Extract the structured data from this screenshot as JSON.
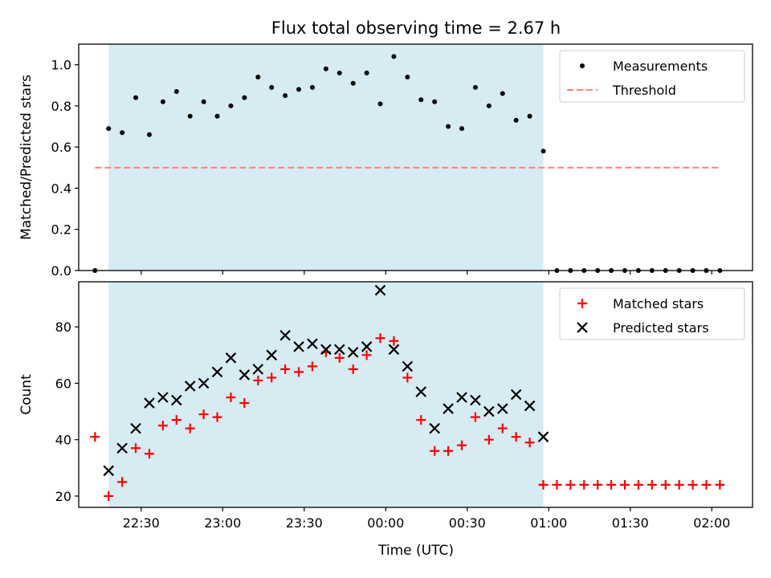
{
  "chart_data": {
    "title": "Flux total observing time = 2.67 h",
    "xlabel": "Time (UTC)",
    "x_unit": "time of day (UTC), consecutive nights from 22:00 to 02:00",
    "xlim": [
      "22:07",
      "02:15"
    ],
    "x_ticks": [
      "22:30",
      "23:00",
      "23:30",
      "00:00",
      "00:30",
      "01:00",
      "01:30",
      "02:00"
    ],
    "shaded_span": {
      "start": "22:18",
      "end": "00:58",
      "color": "#add8e6"
    },
    "panels": [
      {
        "type": "scatter",
        "ylabel": "Matched/Predicted stars",
        "ylim": [
          0,
          1.1
        ],
        "y_ticks": [
          "0.0",
          "0.2",
          "0.4",
          "0.6",
          "0.8",
          "1.0"
        ],
        "legend_position": "top-right",
        "series": [
          {
            "name": "Measurements",
            "marker": "dot",
            "color": "#000000",
            "x": [
              "22:13",
              "22:18",
              "22:23",
              "22:28",
              "22:33",
              "22:38",
              "22:43",
              "22:48",
              "22:53",
              "22:58",
              "23:03",
              "23:08",
              "23:13",
              "23:18",
              "23:23",
              "23:28",
              "23:33",
              "23:38",
              "23:43",
              "23:48",
              "23:53",
              "23:58",
              "00:03",
              "00:08",
              "00:13",
              "00:18",
              "00:23",
              "00:28",
              "00:33",
              "00:38",
              "00:43",
              "00:48",
              "00:53",
              "00:58",
              "01:03",
              "01:08",
              "01:13",
              "01:18",
              "01:23",
              "01:28",
              "01:33",
              "01:38",
              "01:43",
              "01:48",
              "01:53",
              "01:58",
              "02:03"
            ],
            "y": [
              0.0,
              0.69,
              0.67,
              0.84,
              0.66,
              0.82,
              0.87,
              0.75,
              0.82,
              0.75,
              0.8,
              0.84,
              0.94,
              0.89,
              0.85,
              0.88,
              0.89,
              0.98,
              0.96,
              0.91,
              0.96,
              0.81,
              1.04,
              0.94,
              0.83,
              0.82,
              0.7,
              0.69,
              0.89,
              0.8,
              0.86,
              0.73,
              0.75,
              0.58,
              0.0,
              0.0,
              0.0,
              0.0,
              0.0,
              0.0,
              0.0,
              0.0,
              0.0,
              0.0,
              0.0,
              0.0,
              0.0
            ]
          },
          {
            "name": "Threshold",
            "marker": "dashed-line",
            "color": "#ff8080",
            "x": [
              "22:13",
              "02:03"
            ],
            "y": [
              0.5,
              0.5
            ]
          }
        ]
      },
      {
        "type": "scatter",
        "ylabel": "Count",
        "ylim": [
          16,
          96
        ],
        "y_ticks": [
          "20",
          "40",
          "60",
          "80"
        ],
        "legend_position": "top-right",
        "series": [
          {
            "name": "Matched stars",
            "marker": "plus",
            "color": "#ff0000",
            "x": [
              "22:13",
              "22:18",
              "22:23",
              "22:28",
              "22:33",
              "22:38",
              "22:43",
              "22:48",
              "22:53",
              "22:58",
              "23:03",
              "23:08",
              "23:13",
              "23:18",
              "23:23",
              "23:28",
              "23:33",
              "23:38",
              "23:43",
              "23:48",
              "23:53",
              "23:58",
              "00:03",
              "00:08",
              "00:13",
              "00:18",
              "00:23",
              "00:28",
              "00:33",
              "00:38",
              "00:43",
              "00:48",
              "00:53",
              "00:58",
              "01:03",
              "01:08",
              "01:13",
              "01:18",
              "01:23",
              "01:28",
              "01:33",
              "01:38",
              "01:43",
              "01:48",
              "01:53",
              "01:58",
              "02:03"
            ],
            "y": [
              41,
              20,
              25,
              37,
              35,
              45,
              47,
              44,
              49,
              48,
              55,
              53,
              61,
              62,
              65,
              64,
              66,
              71,
              69,
              65,
              70,
              76,
              75,
              62,
              47,
              36,
              36,
              38,
              48,
              40,
              44,
              41,
              39,
              24,
              24,
              24,
              24,
              24,
              24,
              24,
              24,
              24,
              24,
              24,
              24,
              24,
              24
            ]
          },
          {
            "name": "Predicted stars",
            "marker": "x",
            "color": "#000000",
            "x": [
              "22:18",
              "22:23",
              "22:28",
              "22:33",
              "22:38",
              "22:43",
              "22:48",
              "22:53",
              "22:58",
              "23:03",
              "23:08",
              "23:13",
              "23:18",
              "23:23",
              "23:28",
              "23:33",
              "23:38",
              "23:43",
              "23:48",
              "23:53",
              "23:58",
              "00:03",
              "00:08",
              "00:13",
              "00:18",
              "00:23",
              "00:28",
              "00:33",
              "00:38",
              "00:43",
              "00:48",
              "00:53",
              "00:58"
            ],
            "y": [
              29,
              37,
              44,
              53,
              55,
              54,
              59,
              60,
              64,
              69,
              63,
              65,
              70,
              77,
              73,
              74,
              72,
              72,
              71,
              73,
              93,
              72,
              66,
              57,
              44,
              51,
              55,
              54,
              50,
              51,
              56,
              52,
              41
            ]
          }
        ]
      }
    ]
  }
}
